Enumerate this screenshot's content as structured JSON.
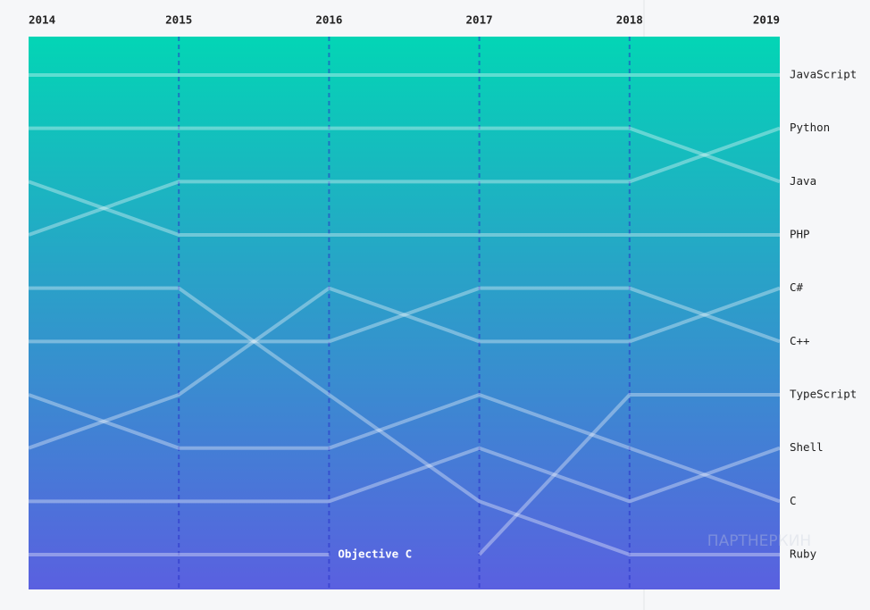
{
  "chart_data": {
    "type": "bump",
    "categories": [
      "2014",
      "2015",
      "2016",
      "2017",
      "2018",
      "2019"
    ],
    "series": [
      {
        "name": "JavaScript",
        "values": [
          1,
          1,
          1,
          1,
          1,
          1
        ]
      },
      {
        "name": "Python",
        "values": [
          4,
          3,
          3,
          3,
          3,
          2
        ]
      },
      {
        "name": "Java",
        "values": [
          2,
          2,
          2,
          2,
          2,
          3
        ]
      },
      {
        "name": "PHP",
        "values": [
          3,
          4,
          4,
          4,
          4,
          4
        ]
      },
      {
        "name": "C#",
        "values": [
          8,
          7,
          5,
          6,
          6,
          5
        ]
      },
      {
        "name": "C++",
        "values": [
          6,
          6,
          6,
          5,
          5,
          6
        ]
      },
      {
        "name": "TypeScript",
        "values": [
          null,
          null,
          null,
          10,
          7,
          7
        ]
      },
      {
        "name": "Shell",
        "values": [
          9,
          9,
          9,
          8,
          9,
          8
        ]
      },
      {
        "name": "C",
        "values": [
          7,
          8,
          8,
          7,
          8,
          9
        ]
      },
      {
        "name": "Ruby",
        "values": [
          5,
          5,
          7,
          9,
          10,
          10
        ]
      },
      {
        "name": "Objective C",
        "values": [
          10,
          10,
          10,
          null,
          null,
          null
        ]
      }
    ],
    "line_color": "rgba(255,255,255,0.35)",
    "gradient": [
      "#03d5b5",
      "#5a60e0"
    ],
    "watermark": "ПАРТНЕРКИН"
  }
}
